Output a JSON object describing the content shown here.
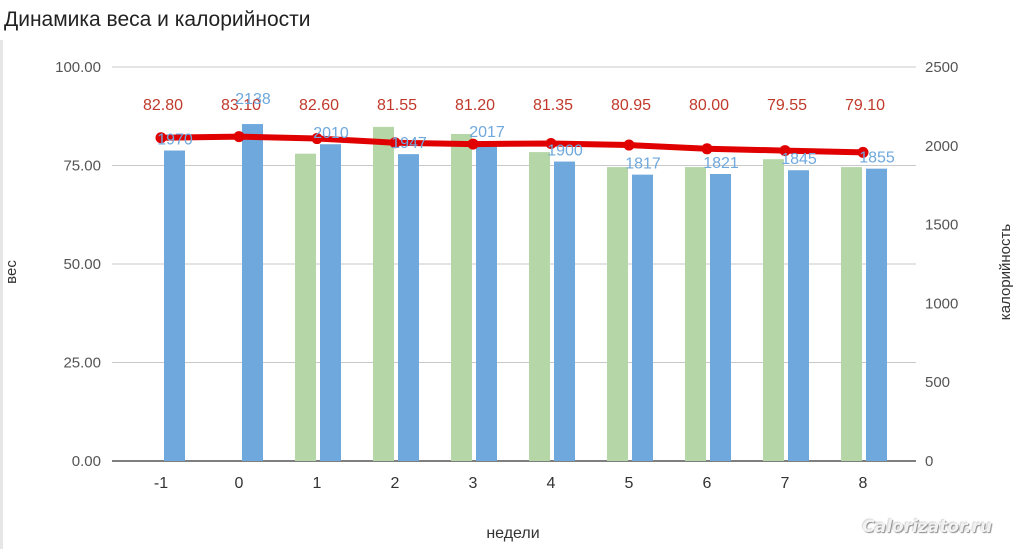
{
  "chart_data": {
    "type": "bar",
    "title": "Динамика веса и калорийности",
    "xlabel": "недели",
    "ylabel": "вес",
    "y2label": "калорийность",
    "categories": [
      "-1",
      "0",
      "1",
      "2",
      "3",
      "4",
      "5",
      "6",
      "7",
      "8"
    ],
    "ylim": [
      0,
      100
    ],
    "y2lim": [
      0,
      2500
    ],
    "yticks": [
      "0.00",
      "25.00",
      "50.00",
      "75.00",
      "100.00"
    ],
    "y2ticks": [
      "0",
      "500",
      "1000",
      "1500",
      "2000",
      "2500"
    ],
    "grid": true,
    "series": [
      {
        "type": "bar",
        "axis": "right",
        "color": "#b5d6a7",
        "values": [
          null,
          null,
          1950,
          2120,
          2075,
          1960,
          1865,
          1865,
          1915,
          1865
        ]
      },
      {
        "type": "bar",
        "axis": "right",
        "color": "#6fa8dc",
        "values": [
          1970,
          2138,
          2010,
          1947,
          2017,
          1900,
          1817,
          1821,
          1845,
          1855
        ],
        "labels": [
          "1970",
          "2138",
          "2010",
          "1947",
          "2017",
          "1900",
          "1817",
          "1821",
          "1845",
          "1855"
        ]
      },
      {
        "type": "line",
        "axis": "left",
        "color": "#e00000",
        "values": [
          82.8,
          83.1,
          82.6,
          81.55,
          81.2,
          81.35,
          80.95,
          80.0,
          79.55,
          79.1
        ],
        "labels": [
          "82.80",
          "83.10",
          "82.60",
          "81.55",
          "81.20",
          "81.35",
          "80.95",
          "80.00",
          "79.55",
          "79.10"
        ]
      }
    ]
  },
  "watermark": "Calorizator.ru",
  "colors": {
    "weight_line": "#e00000",
    "weight_label": "#c0392b",
    "calorie_bar": "#6fa8dc",
    "calorie_label": "#6fa8dc",
    "green_bar": "#b5d6a7",
    "grid": "#c8c8c8",
    "axis_text": "#555555"
  }
}
